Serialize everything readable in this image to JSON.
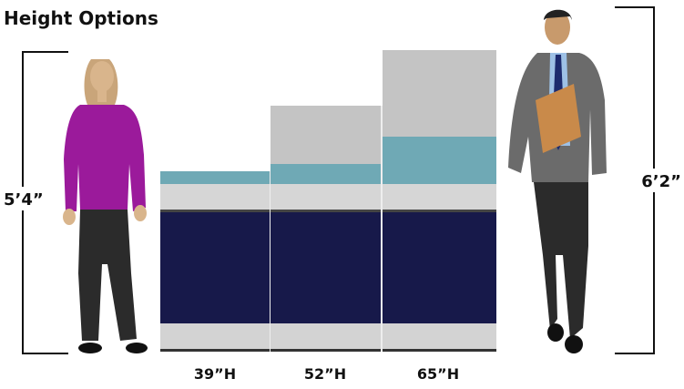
{
  "title": "Height Options",
  "people": [
    {
      "height": "5’4”"
    },
    {
      "height": "6’2”"
    }
  ],
  "panels": [
    {
      "label": "39”H"
    },
    {
      "label": "52”H"
    },
    {
      "label": "65”H"
    }
  ]
}
